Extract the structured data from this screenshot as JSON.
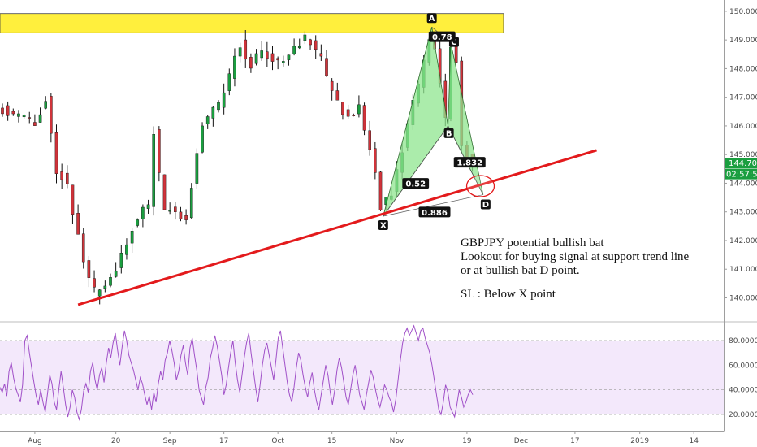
{
  "colors": {
    "bull": "#1a9e3f",
    "bear": "#d0333a",
    "wick": "#111111",
    "trendline": "#e31a1c",
    "zone": "#ffef3d",
    "pattern_fill": "#8fe58f",
    "rsi_line": "#a050c8",
    "rsi_band": "#f3e8fb",
    "price_line": "#3cb54a"
  },
  "chart_data": [
    {
      "type": "candlestick",
      "symbol": "GBPJPY",
      "y_axis": {
        "range": [
          139.6,
          150.15
        ],
        "ticks": [
          "150.000",
          "149.000",
          "148.000",
          "147.000",
          "146.000",
          "145.000",
          "144.000",
          "143.000",
          "142.000",
          "141.000",
          "140.000"
        ],
        "tick_values": [
          150,
          149,
          148,
          147,
          146,
          145,
          144,
          143,
          142,
          141,
          140
        ]
      },
      "x_axis": {
        "ticks": [
          "Aug",
          "20",
          "Sep",
          "17",
          "Oct",
          "15",
          "Nov",
          "19",
          "Dec",
          "17",
          "2019",
          "14"
        ],
        "tick_index": [
          6,
          21,
          31,
          41,
          51,
          61,
          73,
          86,
          96,
          106,
          118,
          128
        ]
      },
      "last_price": {
        "value": 144.704,
        "label": "144.704",
        "countdown": "02:57:54"
      },
      "zone": {
        "from": 149.25,
        "to": 149.92
      },
      "trendline": {
        "start": {
          "index": 14,
          "price": 139.76
        },
        "end": {
          "index": 110,
          "price": 145.15
        }
      },
      "harmonic_pattern": {
        "points": [
          {
            "label": "X",
            "index": 70.5,
            "price": 142.85
          },
          {
            "label": "A",
            "index": 79.5,
            "price": 149.45
          },
          {
            "label": "B",
            "index": 82.5,
            "price": 146.0
          },
          {
            "label": "C",
            "index": 83,
            "price": 148.9
          },
          {
            "label": "D",
            "index": 89,
            "price": 143.6
          }
        ],
        "ratios": [
          {
            "label": "0.52",
            "index": 76.5,
            "price": 143.98
          },
          {
            "label": "0.886",
            "index": 80,
            "price": 142.98
          },
          {
            "label": "0.78",
            "index": 81.4,
            "price": 149.1
          },
          {
            "label": "1.832",
            "index": 86.5,
            "price": 144.72
          }
        ]
      },
      "highlight_ellipse": {
        "index": 88.5,
        "price": 143.9
      },
      "anchors": [
        [
          0,
          146.6
        ],
        [
          6,
          146.1
        ],
        [
          8,
          146.9
        ],
        [
          10,
          144.5
        ],
        [
          12,
          143.9
        ],
        [
          15,
          141.2
        ],
        [
          17,
          140.2
        ],
        [
          21,
          140.9
        ],
        [
          24,
          142.4
        ],
        [
          27,
          143.3
        ],
        [
          28,
          145.8
        ],
        [
          30,
          143.1
        ],
        [
          34,
          142.8
        ],
        [
          37,
          146.1
        ],
        [
          40,
          146.7
        ],
        [
          44,
          148.9
        ],
        [
          46,
          148.1
        ],
        [
          48,
          148.6
        ],
        [
          52,
          148.2
        ],
        [
          56,
          149.1
        ],
        [
          59,
          148.3
        ],
        [
          61,
          147.1
        ],
        [
          64,
          146.3
        ],
        [
          66,
          146.6
        ],
        [
          69,
          144.5
        ],
        [
          70,
          143.2
        ],
        [
          72,
          143.6
        ],
        [
          75,
          146.0
        ],
        [
          78,
          148.2
        ],
        [
          79.5,
          149.3
        ],
        [
          82,
          146.3
        ],
        [
          83,
          148.9
        ],
        [
          84,
          148.3
        ],
        [
          85,
          145.2
        ],
        [
          86,
          145.0
        ],
        [
          87,
          144.7
        ]
      ],
      "candles": []
    },
    {
      "type": "line",
      "indicator": "RSI",
      "y_axis": {
        "range": [
          10,
          95
        ],
        "ticks": [
          "80.0000",
          "60.0000",
          "40.0000",
          "20.0000"
        ],
        "tick_values": [
          80,
          60,
          40,
          20
        ]
      },
      "band": [
        20,
        80
      ],
      "midline": 40,
      "values": [
        42,
        38,
        45,
        35,
        55,
        62,
        50,
        41,
        36,
        30,
        44,
        80,
        84,
        70,
        58,
        46,
        35,
        28,
        40,
        30,
        22,
        37,
        52,
        45,
        30,
        24,
        40,
        55,
        42,
        28,
        18,
        26,
        40,
        34,
        22,
        16,
        24,
        39,
        45,
        38,
        55,
        62,
        48,
        40,
        52,
        58,
        46,
        62,
        74,
        66,
        78,
        86,
        72,
        60,
        75,
        88,
        80,
        68,
        62,
        56,
        48,
        40,
        50,
        45,
        36,
        28,
        35,
        24,
        38,
        30,
        45,
        55,
        48,
        64,
        70,
        80,
        72,
        62,
        48,
        55,
        68,
        76,
        62,
        52,
        74,
        82,
        68,
        56,
        40,
        34,
        28,
        42,
        50,
        66,
        74,
        84,
        76,
        64,
        52,
        36,
        44,
        58,
        70,
        80,
        62,
        48,
        38,
        52,
        66,
        78,
        86,
        70,
        56,
        42,
        30,
        44,
        60,
        72,
        78,
        68,
        58,
        48,
        64,
        82,
        88,
        74,
        60,
        46,
        36,
        30,
        42,
        58,
        70,
        64,
        52,
        42,
        34,
        46,
        54,
        40,
        30,
        24,
        36,
        48,
        60,
        52,
        38,
        28,
        40,
        56,
        66,
        58,
        46,
        34,
        28,
        40,
        52,
        60,
        48,
        36,
        30,
        24,
        36,
        46,
        56,
        50,
        40,
        32,
        26,
        34,
        44,
        40,
        34,
        30,
        22,
        32,
        48,
        64,
        78,
        86,
        90,
        84,
        88,
        92,
        86,
        80,
        88,
        90,
        82,
        76,
        70,
        60,
        48,
        36,
        24,
        20,
        30,
        44,
        38,
        26,
        22,
        18,
        28,
        40,
        34,
        26,
        30,
        36,
        40,
        36
      ]
    }
  ],
  "annotation": {
    "lines": [
      "GBPJPY potential bullish bat",
      "Lookout for buying signal at support trend line",
      "or at bullish bat D point.",
      "",
      "SL : Below X point"
    ]
  }
}
